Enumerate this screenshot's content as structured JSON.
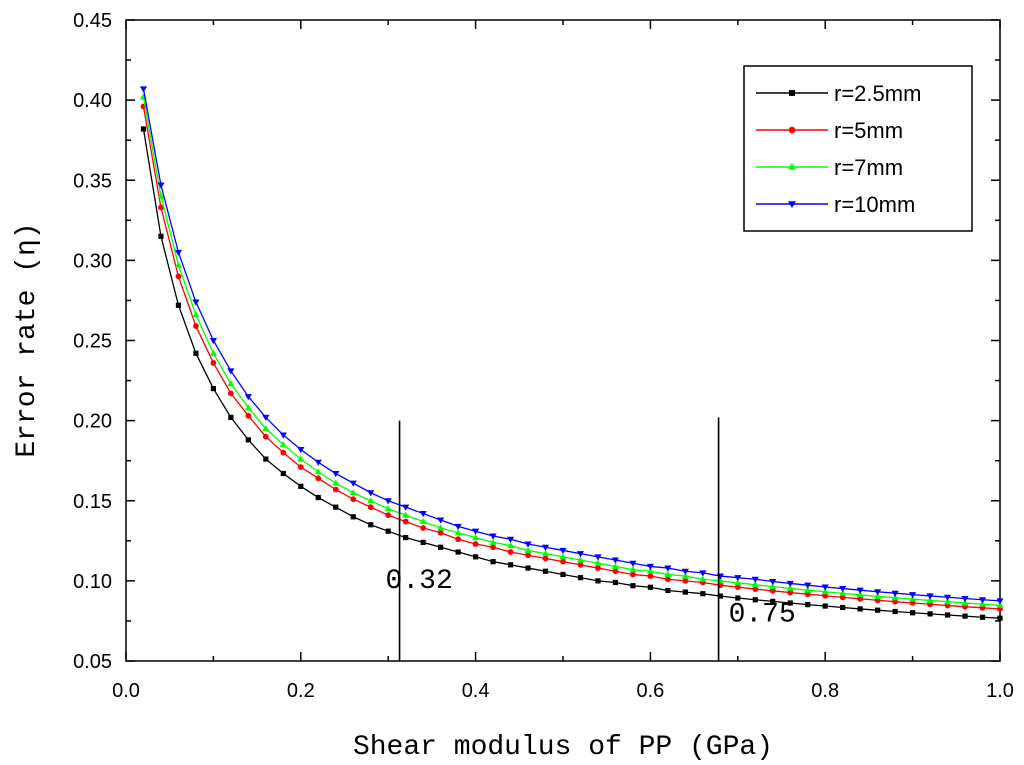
{
  "chart_data": {
    "type": "line",
    "title": "",
    "xlabel": "Shear modulus of PP (GPa)",
    "ylabel": "Error rate (η)",
    "xlim": [
      0.0,
      1.0
    ],
    "ylim": [
      0.05,
      0.45
    ],
    "x_ticks": [
      0.0,
      0.2,
      0.4,
      0.6,
      0.8,
      1.0
    ],
    "x_tick_labels": [
      "0.0",
      "0.2",
      "0.4",
      "0.6",
      "0.8",
      "1.0"
    ],
    "y_ticks": [
      0.05,
      0.1,
      0.15,
      0.2,
      0.25,
      0.3,
      0.35,
      0.4,
      0.45
    ],
    "y_tick_labels": [
      "0.05",
      "0.10",
      "0.15",
      "0.20",
      "0.25",
      "0.30",
      "0.35",
      "0.40",
      "0.45"
    ],
    "grid": false,
    "legend_position": "top-right",
    "x": [
      0.02,
      0.04,
      0.06,
      0.08,
      0.1,
      0.12,
      0.14,
      0.16,
      0.18,
      0.2,
      0.22,
      0.24,
      0.26,
      0.28,
      0.3,
      0.32,
      0.34,
      0.36,
      0.38,
      0.4,
      0.42,
      0.44,
      0.46,
      0.48,
      0.5,
      0.52,
      0.54,
      0.56,
      0.58,
      0.6,
      0.62,
      0.64,
      0.66,
      0.68,
      0.7,
      0.72,
      0.74,
      0.76,
      0.78,
      0.8,
      0.82,
      0.84,
      0.86,
      0.88,
      0.9,
      0.92,
      0.94,
      0.96,
      0.98,
      1.0
    ],
    "series": [
      {
        "name": "r=2.5mm",
        "color": "#000000",
        "marker": "square",
        "values": [
          0.382,
          0.315,
          0.272,
          0.242,
          0.22,
          0.202,
          0.188,
          0.176,
          0.167,
          0.159,
          0.152,
          0.146,
          0.14,
          0.135,
          0.131,
          0.127,
          0.124,
          0.121,
          0.118,
          0.115,
          0.112,
          0.11,
          0.108,
          0.106,
          0.104,
          0.102,
          0.1,
          0.099,
          0.097,
          0.096,
          0.094,
          0.093,
          0.092,
          0.0905,
          0.0893,
          0.0882,
          0.0872,
          0.0862,
          0.0852,
          0.0843,
          0.0834,
          0.0825,
          0.0817,
          0.0809,
          0.0801,
          0.0794,
          0.0787,
          0.078,
          0.0773,
          0.0767
        ]
      },
      {
        "name": "r=5mm",
        "color": "#ff0000",
        "marker": "circle",
        "values": [
          0.396,
          0.333,
          0.29,
          0.259,
          0.236,
          0.217,
          0.203,
          0.19,
          0.18,
          0.171,
          0.164,
          0.157,
          0.151,
          0.146,
          0.141,
          0.137,
          0.133,
          0.13,
          0.126,
          0.123,
          0.121,
          0.118,
          0.116,
          0.114,
          0.112,
          0.11,
          0.108,
          0.106,
          0.104,
          0.103,
          0.101,
          0.1,
          0.099,
          0.0973,
          0.0961,
          0.0949,
          0.0938,
          0.0927,
          0.0917,
          0.0907,
          0.0897,
          0.0888,
          0.0879,
          0.087,
          0.0862,
          0.0854,
          0.0846,
          0.0839,
          0.0832,
          0.0825
        ]
      },
      {
        "name": "r=7mm",
        "color": "#00ff00",
        "marker": "triangle-up",
        "values": [
          0.402,
          0.34,
          0.297,
          0.266,
          0.242,
          0.223,
          0.208,
          0.195,
          0.185,
          0.176,
          0.168,
          0.161,
          0.155,
          0.15,
          0.145,
          0.141,
          0.137,
          0.133,
          0.13,
          0.127,
          0.124,
          0.122,
          0.119,
          0.117,
          0.115,
          0.113,
          0.111,
          0.109,
          0.107,
          0.106,
          0.104,
          0.103,
          0.101,
          0.1,
          0.0988,
          0.0976,
          0.0964,
          0.0953,
          0.0942,
          0.0932,
          0.0922,
          0.0913,
          0.0903,
          0.0895,
          0.0886,
          0.0878,
          0.087,
          0.0862,
          0.0855,
          0.0848
        ]
      },
      {
        "name": "r=10mm",
        "color": "#0000ff",
        "marker": "triangle-down",
        "values": [
          0.407,
          0.347,
          0.305,
          0.274,
          0.25,
          0.231,
          0.215,
          0.202,
          0.191,
          0.182,
          0.174,
          0.167,
          0.161,
          0.155,
          0.15,
          0.146,
          0.142,
          0.138,
          0.134,
          0.131,
          0.128,
          0.126,
          0.123,
          0.121,
          0.119,
          0.117,
          0.115,
          0.113,
          0.111,
          0.109,
          0.108,
          0.106,
          0.105,
          0.103,
          0.102,
          0.101,
          0.0996,
          0.0984,
          0.0973,
          0.0962,
          0.0952,
          0.0942,
          0.0932,
          0.0923,
          0.0914,
          0.0906,
          0.0898,
          0.089,
          0.0882,
          0.0875
        ]
      }
    ],
    "annotations": [
      {
        "text": "0.32",
        "x": 0.313,
        "y_from": 0.05,
        "y_to": 0.2
      },
      {
        "text": "0.75",
        "x": 0.678,
        "y_from": 0.05,
        "y_to": 0.202
      }
    ]
  }
}
